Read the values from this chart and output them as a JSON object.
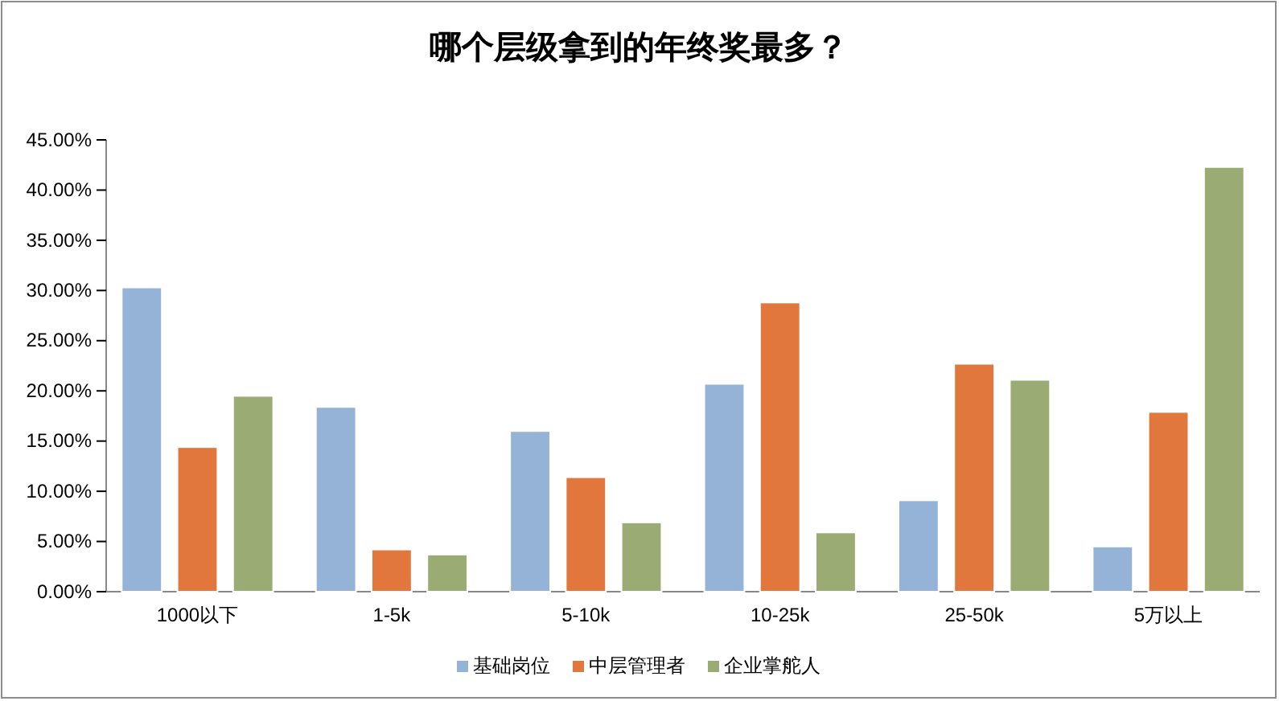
{
  "chart_data": {
    "type": "bar",
    "title": "哪个层级拿到的年终奖最多？",
    "categories": [
      "1000以下",
      "1-5k",
      "5-10k",
      "10-25k",
      "25-50k",
      "5万以上"
    ],
    "series": [
      {
        "name": "基础岗位",
        "color": "#95b3d7",
        "values": [
          30.3,
          18.4,
          16.0,
          20.7,
          9.1,
          4.5
        ]
      },
      {
        "name": "中层管理者",
        "color": "#e2773d",
        "values": [
          14.4,
          4.2,
          11.4,
          28.8,
          22.7,
          17.9
        ]
      },
      {
        "name": "企业掌舵人",
        "color": "#9bab74",
        "values": [
          19.5,
          3.7,
          6.9,
          5.9,
          21.1,
          42.3
        ]
      }
    ],
    "ylim": [
      0,
      45
    ],
    "yticks": [
      {
        "value": 0,
        "label": "0.00%"
      },
      {
        "value": 5,
        "label": "5.00%"
      },
      {
        "value": 10,
        "label": "10.00%"
      },
      {
        "value": 15,
        "label": "15.00%"
      },
      {
        "value": 20,
        "label": "20.00%"
      },
      {
        "value": 25,
        "label": "25.00%"
      },
      {
        "value": 30,
        "label": "30.00%"
      },
      {
        "value": 35,
        "label": "35.00%"
      },
      {
        "value": 40,
        "label": "40.00%"
      },
      {
        "value": 45,
        "label": "45.00%"
      }
    ],
    "legend": "bottom"
  }
}
